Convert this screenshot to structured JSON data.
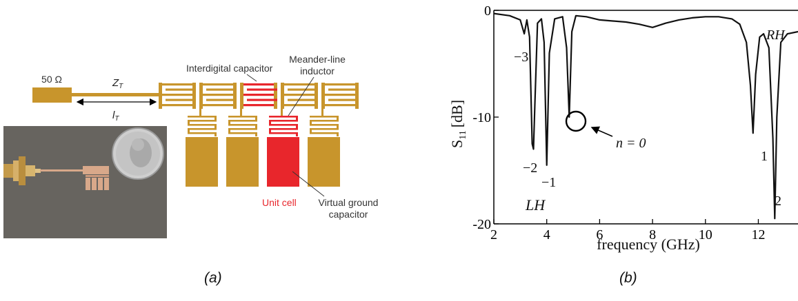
{
  "panel_a": {
    "colors": {
      "metal": "#c8952c",
      "unit": "#e8262c",
      "board": "#6e6a66",
      "coin": "#c9c9c9"
    },
    "port_label": "50 Ω",
    "line_impedance": "Z",
    "line_impedance_sub": "T",
    "line_length": "l",
    "line_length_sub": "T",
    "labels": {
      "interdigital": "Interdigital capacitor",
      "meander_1": "Meander-line",
      "meander_2": "inductor",
      "unit_cell": "Unit cell",
      "virtual_1": "Virtual ground",
      "virtual_2": "capacitor"
    },
    "caption": "(a)"
  },
  "panel_b": {
    "caption": "(b)",
    "chart_data": {
      "type": "line",
      "xlabel": "frequency (GHz)",
      "ylabel": "S",
      "ylabel_sub": "11",
      "ylabel_unit": "[dB]",
      "xlim": [
        2,
        13.5
      ],
      "ylim": [
        -20,
        0
      ],
      "xticks": [
        "2",
        "4",
        "6",
        "8",
        "10",
        "12"
      ],
      "yticks": [
        "0",
        "-10",
        "-20"
      ],
      "series": [
        {
          "x": [
            2.0,
            2.6,
            3.0,
            3.15,
            3.25,
            3.35,
            3.45,
            3.5,
            3.55,
            3.65,
            3.8,
            3.9,
            4.0,
            4.1,
            4.3,
            4.6,
            4.75,
            4.85,
            4.95,
            5.1,
            5.5,
            6.0,
            6.5,
            7.0,
            7.5,
            8.0,
            8.5,
            9.0,
            9.5,
            10.0,
            10.5,
            11.0,
            11.3,
            11.55,
            11.7,
            11.8,
            11.9,
            12.05,
            12.2,
            12.4,
            12.55,
            12.62,
            12.7,
            12.85,
            13.1,
            13.5
          ],
          "y": [
            -0.3,
            -0.5,
            -0.9,
            -2.2,
            -0.9,
            -2.5,
            -12.5,
            -13.0,
            -9.0,
            -1.2,
            -0.8,
            -3.0,
            -14.5,
            -4.0,
            -0.8,
            -0.6,
            -3.5,
            -10.0,
            -2.0,
            -0.5,
            -0.6,
            -0.9,
            -1.0,
            -1.1,
            -1.3,
            -1.6,
            -1.2,
            -0.9,
            -0.7,
            -0.6,
            -0.6,
            -0.8,
            -1.3,
            -3.0,
            -7.0,
            -11.5,
            -6.0,
            -2.5,
            -2.2,
            -3.5,
            -12.0,
            -19.5,
            -10.0,
            -3.0,
            -2.2,
            -2.0
          ]
        }
      ],
      "annotations": {
        "m3": "−3",
        "m2": "−2",
        "m1": "−1",
        "lh": "LH",
        "rh": "RH",
        "p1": "1",
        "p2": "2",
        "n0": "n = 0"
      }
    }
  }
}
